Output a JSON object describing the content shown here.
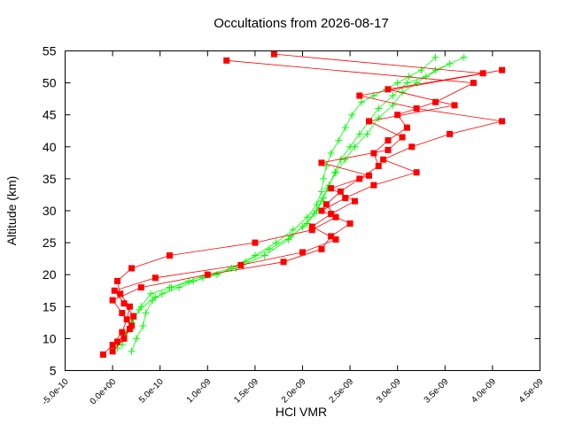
{
  "chart_data": {
    "type": "line",
    "title": "Occultations from 2026-08-17",
    "xlabel": "HCl VMR",
    "ylabel": "Altitude (km)",
    "xlim": [
      -5e-10,
      4.5e-09
    ],
    "ylim": [
      5,
      55
    ],
    "x_ticks": [
      "-5.0e-10",
      "0.0e+00",
      "5.0e-10",
      "1.0e-09",
      "1.5e-09",
      "2.0e-09",
      "2.5e-09",
      "3.0e-09",
      "3.5e-09",
      "4.0e-09",
      "4.5e-09"
    ],
    "y_ticks": [
      "5",
      "10",
      "15",
      "20",
      "25",
      "30",
      "35",
      "40",
      "45",
      "50",
      "55"
    ],
    "grid": false,
    "legend": "none",
    "series": [
      {
        "color": "#00ff00",
        "marker": "plus",
        "x": [
          2e-10,
          2.5e-10,
          3.2e-10,
          3.5e-10,
          4.2e-10,
          5.2e-10,
          6.2e-10,
          8e-10,
          1e-09,
          1.25e-09,
          1.5e-09,
          1.72e-09,
          1.9e-09,
          2.05e-09,
          2.15e-09,
          2.2e-09,
          2.22e-09,
          2.25e-09,
          2.3e-09,
          2.38e-09,
          2.45e-09,
          2.52e-09,
          2.62e-09,
          2.75e-09,
          2.88e-09,
          3e-09,
          3.12e-09,
          3.25e-09,
          3.4e-09
        ],
        "y": [
          8,
          10,
          12,
          14,
          16,
          17,
          18,
          19,
          20,
          21,
          23,
          25,
          27,
          29,
          31,
          33,
          35,
          37,
          39,
          41,
          43,
          45,
          47,
          48,
          49,
          50,
          51,
          52,
          54
        ]
      },
      {
        "color": "#00ff00",
        "marker": "plus",
        "x": [
          1e-10,
          1.5e-10,
          2.2e-10,
          3e-10,
          4e-10,
          6e-10,
          8.5e-10,
          1.1e-09,
          1.4e-09,
          1.65e-09,
          1.88e-09,
          2.05e-09,
          2.15e-09,
          2.22e-09,
          2.28e-09,
          2.34e-09,
          2.4e-09,
          2.5e-09,
          2.6e-09,
          2.7e-09,
          2.8e-09,
          2.95e-09,
          3.1e-09,
          3.3e-09,
          3.55e-09
        ],
        "y": [
          9,
          11,
          13,
          15,
          17,
          18,
          19,
          20,
          22,
          24,
          26,
          28,
          30,
          32,
          34,
          36,
          38,
          40,
          42,
          44,
          46,
          48,
          50,
          51,
          53
        ]
      },
      {
        "color": "#00ff00",
        "marker": "plus",
        "x": [
          5e-11,
          1.2e-10,
          2e-10,
          2.8e-10,
          4.5e-10,
          7e-10,
          9.5e-10,
          1.3e-09,
          1.6e-09,
          1.85e-09,
          2e-09,
          2.12e-09,
          2.2e-09,
          2.26e-09,
          2.35e-09,
          2.45e-09,
          2.55e-09,
          2.68e-09,
          2.8e-09,
          2.95e-09,
          3.05e-09,
          3.2e-09,
          3.4e-09,
          3.7e-09
        ],
        "y": [
          8.5,
          10.5,
          12.5,
          14.5,
          16.5,
          18,
          19.5,
          21,
          23,
          25.5,
          27.5,
          29.5,
          31.5,
          33.5,
          36,
          38,
          40,
          42,
          44.5,
          46.5,
          48.5,
          50,
          52,
          54
        ]
      },
      {
        "color": "#ff0000",
        "marker": "square",
        "x": [
          -1e-10,
          0.0,
          1e-10,
          1.5e-10,
          1.8e-10,
          8e-11,
          5e-11,
          2e-10,
          6e-10,
          1.5e-09,
          2.1e-09,
          2.35e-09,
          2.25e-09,
          2.4e-09,
          2.6e-09,
          2.8e-09,
          2.75e-09,
          2.9e-09,
          3.1e-09,
          3e-09,
          3.4e-09,
          3.8e-09,
          1.2e-09
        ],
        "y": [
          7.5,
          9,
          11,
          13,
          15,
          17,
          19,
          21,
          23,
          25,
          27,
          29,
          31,
          33,
          35,
          37,
          39,
          41,
          43,
          45,
          47,
          50,
          53.5
        ]
      },
      {
        "color": "#ff0000",
        "marker": "square",
        "x": [
          0.0,
          1.2e-10,
          2e-10,
          1e-10,
          0.0,
          3e-10,
          1e-09,
          1.8e-09,
          2.2e-09,
          2.3e-09,
          2.5e-09,
          2.2e-09,
          2.45e-09,
          2.75e-09,
          3.2e-09,
          2.85e-09,
          3.15e-09,
          3.55e-09,
          4.1e-09,
          3.2e-09,
          2.6e-09,
          4.1e-09
        ],
        "y": [
          8,
          10,
          12,
          14,
          16,
          18,
          20,
          22,
          24,
          26,
          28,
          30,
          32,
          34,
          36,
          38,
          40,
          42,
          44,
          46,
          48,
          52
        ]
      },
      {
        "color": "#ff0000",
        "marker": "square",
        "x": [
          5e-11,
          1.8e-10,
          2.2e-10,
          1.2e-10,
          2e-11,
          4.5e-10,
          1.35e-09,
          2e-09,
          2.35e-09,
          2.1e-09,
          2.3e-09,
          2.55e-09,
          2.3e-09,
          2.7e-09,
          2.2e-09,
          2.9e-09,
          3.05e-09,
          2.7e-09,
          3.6e-09,
          2.9e-09,
          3.9e-09,
          1.7e-09
        ],
        "y": [
          9.5,
          11.5,
          13.5,
          15.5,
          17.5,
          19.5,
          21.5,
          23.5,
          25.5,
          27.5,
          29.5,
          31.5,
          33.5,
          35.5,
          37.5,
          39.5,
          41.5,
          44,
          46.5,
          49,
          51.5,
          54.5
        ]
      }
    ]
  }
}
